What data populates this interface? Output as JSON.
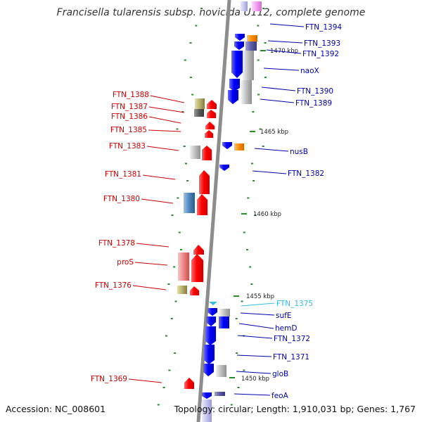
{
  "title": "Francisella tularensis subsp. novicida U112, complete genome",
  "footer": {
    "accession": "Accession: NC_008601",
    "summary": "Topology: circular; Length: 1,910,031 bp; Genes: 1,767"
  },
  "colors": {
    "backbone": "#8c8c8c",
    "reverse_strand": "#e60000",
    "forward_strand": "#1a1ae6",
    "highlight": "#33bbe6",
    "gc_ticks": "#2a8a2a"
  },
  "kbp_markers": [
    "1470 kbp",
    "1465 kbp",
    "1460 kbp",
    "1455 kbp",
    "1450 kbp"
  ],
  "left_genes": [
    {
      "name": "FTN_1388",
      "color": "#cc0000"
    },
    {
      "name": "FTN_1387",
      "color": "#cc0000"
    },
    {
      "name": "FTN_1386",
      "color": "#cc0000"
    },
    {
      "name": "FTN_1385",
      "color": "#cc0000"
    },
    {
      "name": "FTN_1383",
      "color": "#cc0000"
    },
    {
      "name": "FTN_1381",
      "color": "#cc0000"
    },
    {
      "name": "FTN_1380",
      "color": "#cc0000"
    },
    {
      "name": "FTN_1378",
      "color": "#cc0000"
    },
    {
      "name": "proS",
      "color": "#cc0000"
    },
    {
      "name": "FTN_1376",
      "color": "#cc0000"
    },
    {
      "name": "FTN_1369",
      "color": "#cc0000"
    }
  ],
  "right_genes": [
    {
      "name": "FTN_1394",
      "color": "#0000b0"
    },
    {
      "name": "FTN_1393",
      "color": "#0000b0"
    },
    {
      "name": "FTN_1392",
      "color": "#0000b0"
    },
    {
      "name": "naoX",
      "color": "#0000b0"
    },
    {
      "name": "FTN_1390",
      "color": "#0000b0"
    },
    {
      "name": "FTN_1389",
      "color": "#0000b0"
    },
    {
      "name": "nusB",
      "color": "#0000b0"
    },
    {
      "name": "FTN_1382",
      "color": "#0000b0"
    },
    {
      "name": "FTN_1375",
      "color": "#33bbe6"
    },
    {
      "name": "sufE",
      "color": "#0000b0"
    },
    {
      "name": "hemD",
      "color": "#0000b0"
    },
    {
      "name": "FTN_1372",
      "color": "#0000b0"
    },
    {
      "name": "FTN_1371",
      "color": "#0000b0"
    },
    {
      "name": "gloB",
      "color": "#0000b0"
    },
    {
      "name": "feoA",
      "color": "#0000b0"
    }
  ]
}
